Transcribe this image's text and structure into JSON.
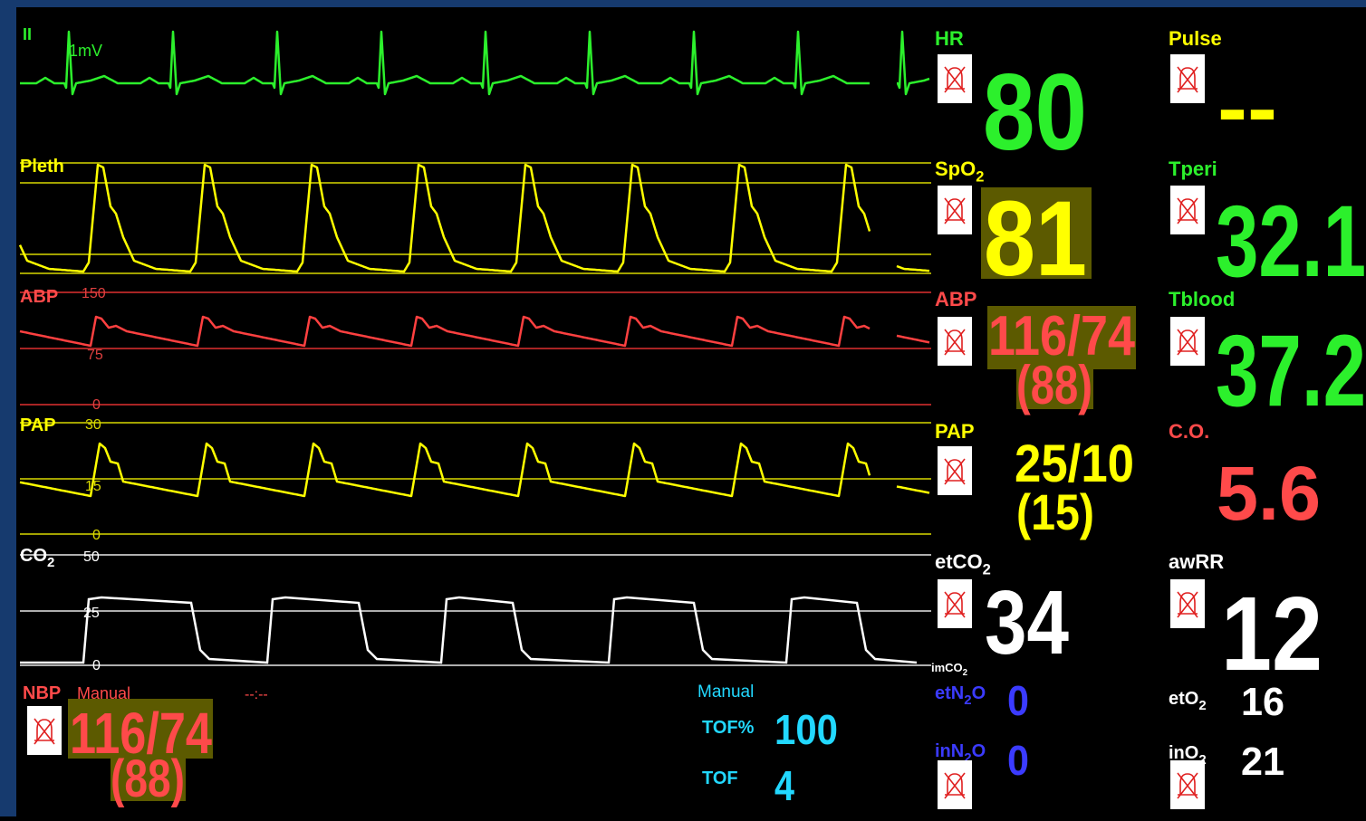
{
  "waveforms": {
    "ecg": {
      "label": "II",
      "scale": "1mV"
    },
    "pleth": {
      "label": "Pleth"
    },
    "abp": {
      "label": "ABP",
      "scale": [
        "150",
        "75",
        "0"
      ]
    },
    "pap": {
      "label": "PAP",
      "scale": [
        "30",
        "15",
        "0"
      ]
    },
    "co2": {
      "label": {
        "text": "CO",
        "sub": "2"
      },
      "scale": [
        "50",
        "25",
        "0"
      ]
    }
  },
  "parameters": {
    "hr": {
      "label": "HR",
      "value": "80"
    },
    "spo2": {
      "label": {
        "text": "SpO",
        "sub": "2"
      },
      "value": "81"
    },
    "abp": {
      "label": "ABP",
      "value": "116/74",
      "mean": "(88)"
    },
    "pap": {
      "label": "PAP",
      "value": "25/10",
      "mean": "(15)"
    },
    "etco2": {
      "label": {
        "text": "etCO",
        "sub": "2"
      },
      "value": "34"
    },
    "imco2": {
      "label": {
        "text": "imCO",
        "sub": "2"
      }
    },
    "etn2o": {
      "label": {
        "text": "etN",
        "sub": "2",
        "tail": "O"
      },
      "value": "0"
    },
    "inn2o": {
      "label": {
        "text": "inN",
        "sub": "2",
        "tail": "O"
      },
      "value": "0"
    },
    "pulse": {
      "label": "Pulse",
      "value": "--"
    },
    "tperi": {
      "label": "Tperi",
      "value": "32.1"
    },
    "tblood": {
      "label": "Tblood",
      "value": "37.2"
    },
    "co": {
      "label": "C.O.",
      "value": "5.6"
    },
    "awrr": {
      "label": "awRR",
      "value": "12"
    },
    "eto2": {
      "label": {
        "text": "etO",
        "sub": "2"
      },
      "value": "16"
    },
    "ino2": {
      "label": {
        "text": "inO",
        "sub": "2"
      },
      "value": "21"
    }
  },
  "nbp": {
    "label": "NBP",
    "mode": "Manual",
    "time": "--:--",
    "value": "116/74",
    "mean": "(88)"
  },
  "tof": {
    "mode": "Manual",
    "ratio_label": "TOF%",
    "ratio": "100",
    "count_label": "TOF",
    "count": "4"
  }
}
